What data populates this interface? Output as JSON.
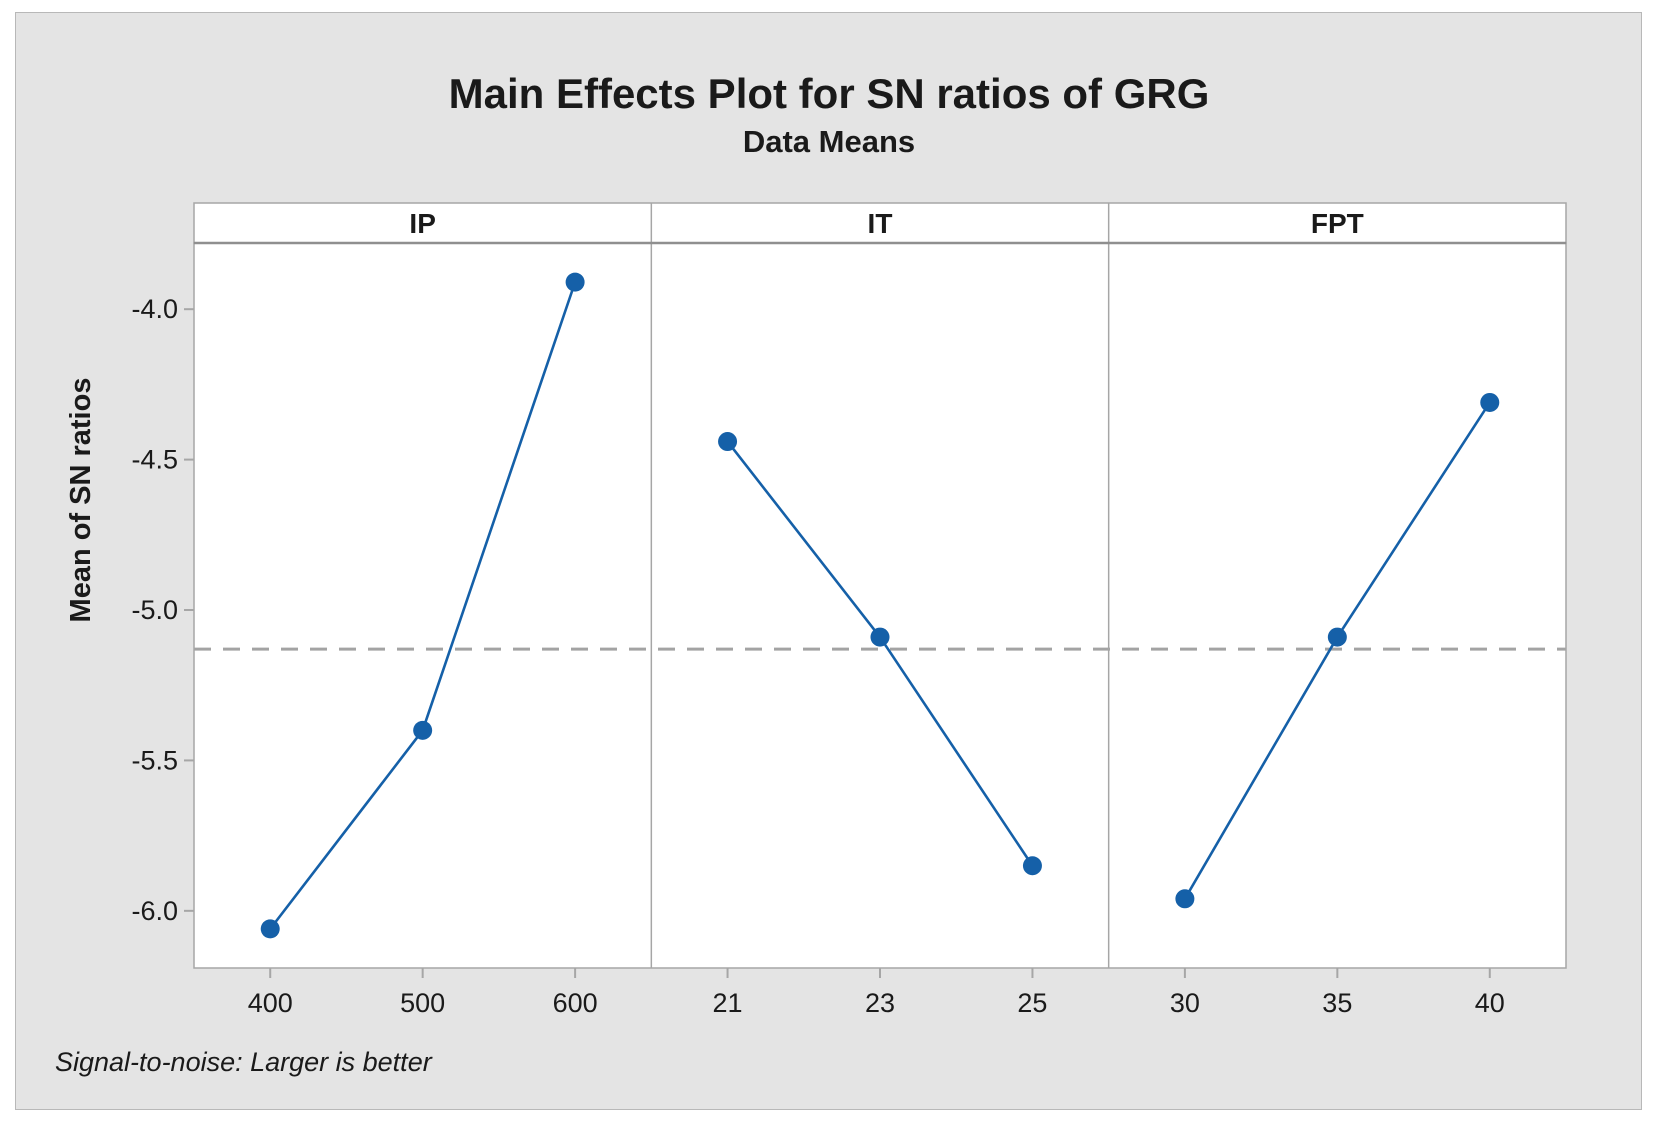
{
  "title": "Main Effects Plot for SN ratios of GRG",
  "subtitle": "Data Means",
  "footer": "Signal-to-noise: Larger is better",
  "colors": {
    "line": "#1560A8",
    "marker": "#1560A8",
    "reference_line": "#A3A3A3",
    "border": "#A6A6A6",
    "header_border": "#8F8F8F",
    "background": "#E4E4E4",
    "plot_background": "#FFFFFF",
    "text": "#1A1A1A"
  },
  "chart_data": {
    "type": "line",
    "title": "Main Effects Plot for SN ratios of GRG",
    "subtitle": "Data Means",
    "ylabel": "Mean of SN ratios",
    "footnote": "Signal-to-noise: Larger is better",
    "ylim": [
      -6.19,
      -3.78
    ],
    "yticks": [
      -4.0,
      -4.5,
      -5.0,
      -5.5,
      -6.0
    ],
    "ytick_labels": [
      "-4.0",
      "-4.5",
      "-5.0",
      "-5.5",
      "-6.0"
    ],
    "reference_line": -5.13,
    "grid": "off",
    "legend": "none",
    "panels": [
      {
        "label": "IP",
        "categories": [
          "400",
          "500",
          "600"
        ],
        "values": [
          -6.06,
          -5.4,
          -3.91
        ]
      },
      {
        "label": "IT",
        "categories": [
          "21",
          "23",
          "25"
        ],
        "values": [
          -4.44,
          -5.09,
          -5.85
        ]
      },
      {
        "label": "FPT",
        "categories": [
          "30",
          "35",
          "40"
        ],
        "values": [
          -5.96,
          -5.09,
          -4.31
        ]
      }
    ]
  }
}
